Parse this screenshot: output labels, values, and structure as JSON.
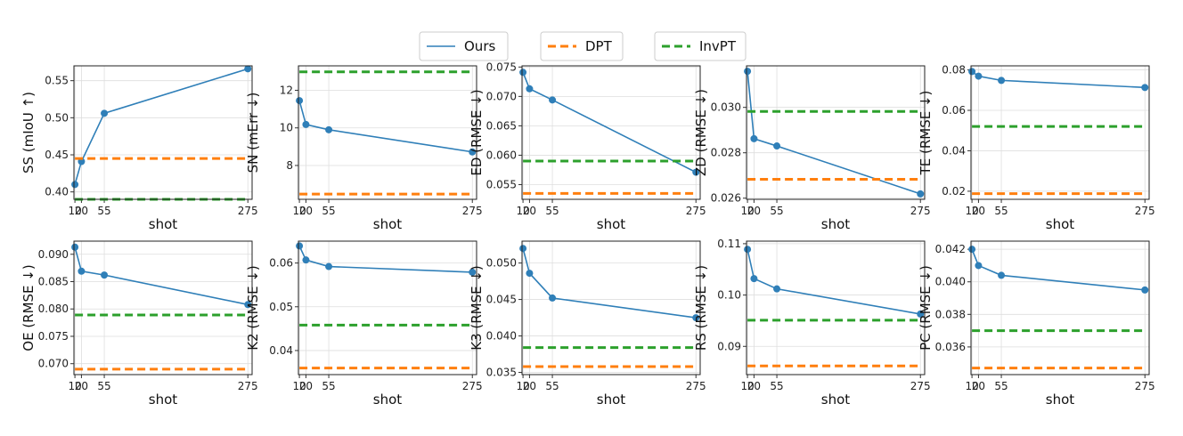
{
  "legend": {
    "entries": [
      {
        "name": "Ours",
        "color": "#2f7fb8",
        "style": "line"
      },
      {
        "name": "DPT",
        "color": "#ff7f0e",
        "style": "dashed"
      },
      {
        "name": "InvPT",
        "color": "#2ca02c",
        "style": "dashed"
      }
    ]
  },
  "chart_data": [
    {
      "type": "line",
      "ylabel": "SS (mIoU ↑)",
      "xlabel": "shot",
      "x": [
        "10",
        "20",
        "55",
        "275"
      ],
      "ylim": [
        0.39,
        0.57
      ],
      "yticks": [
        "0.40",
        "0.45",
        "0.50",
        "0.55"
      ],
      "series": [
        {
          "name": "Ours",
          "values": [
            0.41,
            0.441,
            0.506,
            0.566
          ]
        },
        {
          "name": "DPT",
          "values": [
            0.445,
            0.445,
            0.445,
            0.445
          ]
        },
        {
          "name": "InvPT",
          "values": [
            0.39,
            0.39,
            0.39,
            0.39
          ]
        }
      ]
    },
    {
      "type": "line",
      "ylabel": "SN (mErr ↓)",
      "xlabel": "shot",
      "x": [
        "10",
        "20",
        "55",
        "275"
      ],
      "ylim": [
        6.2,
        13.3
      ],
      "yticks": [
        "8",
        "10",
        "12"
      ],
      "series": [
        {
          "name": "Ours",
          "values": [
            11.45,
            10.18,
            9.9,
            8.72
          ]
        },
        {
          "name": "DPT",
          "values": [
            6.48,
            6.48,
            6.48,
            6.48
          ]
        },
        {
          "name": "InvPT",
          "values": [
            12.98,
            12.98,
            12.98,
            12.98
          ]
        }
      ]
    },
    {
      "type": "line",
      "ylabel": "ED (RMSE ↓)",
      "xlabel": "shot",
      "x": [
        "10",
        "20",
        "55",
        "275"
      ],
      "ylim": [
        0.0525,
        0.0752
      ],
      "yticks": [
        "0.055",
        "0.060",
        "0.065",
        "0.070",
        "0.075"
      ],
      "series": [
        {
          "name": "Ours",
          "values": [
            0.0741,
            0.0713,
            0.0694,
            0.0571
          ]
        },
        {
          "name": "DPT",
          "values": [
            0.0535,
            0.0535,
            0.0535,
            0.0535
          ]
        },
        {
          "name": "InvPT",
          "values": [
            0.059,
            0.059,
            0.059,
            0.059
          ]
        }
      ]
    },
    {
      "type": "line",
      "ylabel": "ZD (RMSE ↓)",
      "xlabel": "shot",
      "x": [
        "10",
        "20",
        "55",
        "275"
      ],
      "ylim": [
        0.02595,
        0.03183
      ],
      "yticks": [
        "0.026",
        "0.028",
        "0.030"
      ],
      "series": [
        {
          "name": "Ours",
          "values": [
            0.03159,
            0.02862,
            0.0283,
            0.02619
          ]
        },
        {
          "name": "DPT",
          "values": [
            0.02683,
            0.02683,
            0.02683,
            0.02683
          ]
        },
        {
          "name": "InvPT",
          "values": [
            0.02982,
            0.02982,
            0.02982,
            0.02982
          ]
        }
      ]
    },
    {
      "type": "line",
      "ylabel": "TE (RMSE ↓)",
      "xlabel": "shot",
      "x": [
        "10",
        "20",
        "55",
        "275"
      ],
      "ylim": [
        0.016,
        0.082
      ],
      "yticks": [
        "0.02",
        "0.04",
        "0.06",
        "0.08"
      ],
      "series": [
        {
          "name": "Ours",
          "values": [
            0.0792,
            0.0769,
            0.0748,
            0.0713
          ]
        },
        {
          "name": "DPT",
          "values": [
            0.0188,
            0.0188,
            0.0188,
            0.0188
          ]
        },
        {
          "name": "InvPT",
          "values": [
            0.052,
            0.052,
            0.052,
            0.052
          ]
        }
      ]
    },
    {
      "type": "line",
      "ylabel": "OE (RMSE ↓)",
      "xlabel": "shot",
      "x": [
        "10",
        "20",
        "55",
        "275"
      ],
      "ylim": [
        0.068,
        0.0924
      ],
      "yticks": [
        "0.070",
        "0.075",
        "0.080",
        "0.085",
        "0.090"
      ],
      "series": [
        {
          "name": "Ours",
          "values": [
            0.0913,
            0.0869,
            0.0862,
            0.0808
          ]
        },
        {
          "name": "DPT",
          "values": [
            0.069,
            0.069,
            0.069,
            0.069
          ]
        },
        {
          "name": "InvPT",
          "values": [
            0.0789,
            0.0789,
            0.0789,
            0.0789
          ]
        }
      ]
    },
    {
      "type": "line",
      "ylabel": "K2 (RMSE ↓)",
      "xlabel": "shot",
      "x": [
        "10",
        "20",
        "55",
        "275"
      ],
      "ylim": [
        0.0345,
        0.065
      ],
      "yticks": [
        "0.04",
        "0.05",
        "0.06"
      ],
      "series": [
        {
          "name": "Ours",
          "values": [
            0.0639,
            0.0607,
            0.0592,
            0.0579
          ]
        },
        {
          "name": "DPT",
          "values": [
            0.036,
            0.036,
            0.036,
            0.036
          ]
        },
        {
          "name": "InvPT",
          "values": [
            0.0458,
            0.0458,
            0.0458,
            0.0458
          ]
        }
      ]
    },
    {
      "type": "line",
      "ylabel": "K3 (RMSE ↓)",
      "xlabel": "shot",
      "x": [
        "10",
        "20",
        "55",
        "275"
      ],
      "ylim": [
        0.0347,
        0.053
      ],
      "yticks": [
        "0.035",
        "0.040",
        "0.045",
        "0.050"
      ],
      "series": [
        {
          "name": "Ours",
          "values": [
            0.052,
            0.0486,
            0.0452,
            0.0425
          ]
        },
        {
          "name": "DPT",
          "values": [
            0.0358,
            0.0358,
            0.0358,
            0.0358
          ]
        },
        {
          "name": "InvPT",
          "values": [
            0.0384,
            0.0384,
            0.0384,
            0.0384
          ]
        }
      ]
    },
    {
      "type": "line",
      "ylabel": "RS (RMSE ↓)",
      "xlabel": "shot",
      "x": [
        "10",
        "20",
        "55",
        "275"
      ],
      "ylim": [
        0.0845,
        0.1105
      ],
      "yticks": [
        "0.09",
        "0.10",
        "0.11"
      ],
      "series": [
        {
          "name": "Ours",
          "values": [
            0.1089,
            0.1032,
            0.1012,
            0.0963
          ]
        },
        {
          "name": "DPT",
          "values": [
            0.0862,
            0.0862,
            0.0862,
            0.0862
          ]
        },
        {
          "name": "InvPT",
          "values": [
            0.0951,
            0.0951,
            0.0951,
            0.0951
          ]
        }
      ]
    },
    {
      "type": "line",
      "ylabel": "PC (RMSE ↓)",
      "xlabel": "shot",
      "x": [
        "10",
        "20",
        "55",
        "275"
      ],
      "ylim": [
        0.0343,
        0.0425
      ],
      "yticks": [
        "0.036",
        "0.038",
        "0.040",
        "0.042"
      ],
      "series": [
        {
          "name": "Ours",
          "values": [
            0.042,
            0.041,
            0.0404,
            0.0395
          ]
        },
        {
          "name": "DPT",
          "values": [
            0.0347,
            0.0347,
            0.0347,
            0.0347
          ]
        },
        {
          "name": "InvPT",
          "values": [
            0.037,
            0.037,
            0.037,
            0.037
          ]
        }
      ]
    }
  ]
}
